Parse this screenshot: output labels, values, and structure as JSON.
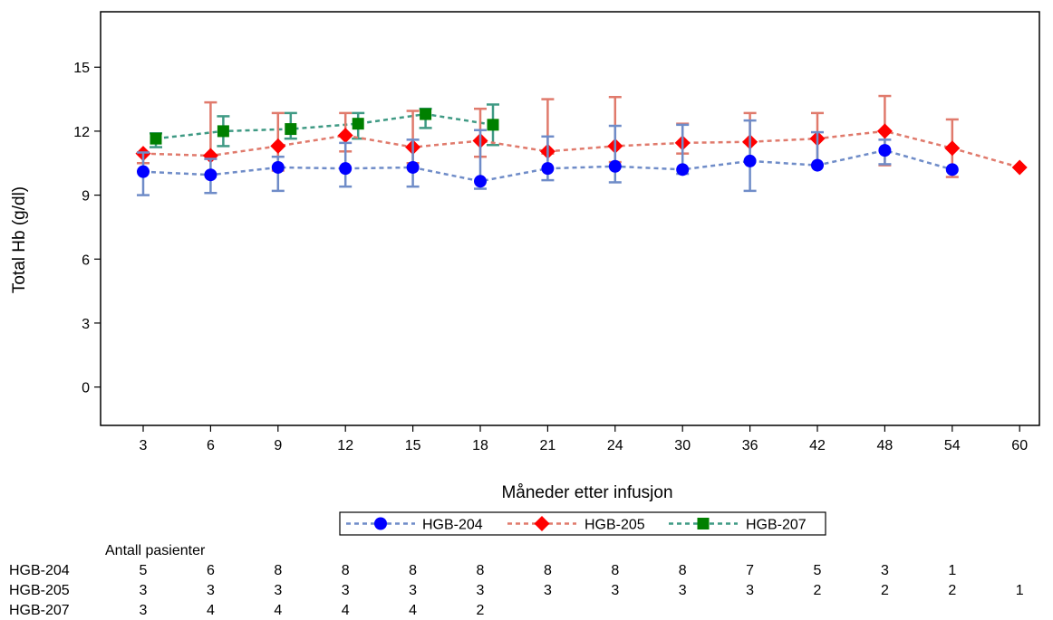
{
  "chart_data": {
    "type": "line",
    "xlabel": "Måneder etter infusjon",
    "ylabel": "Total Hb (g/dl)",
    "categories": [
      "3",
      "6",
      "9",
      "12",
      "15",
      "18",
      "21",
      "24",
      "30",
      "36",
      "42",
      "48",
      "54",
      "60"
    ],
    "y_ticks": [
      0,
      3,
      6,
      9,
      12,
      15
    ],
    "ylim": [
      -1.8,
      17.6
    ],
    "grid": false,
    "legend_position": "bottom",
    "colors": {
      "HGB-204": "#0000ff",
      "HGB-205": "#ff0000",
      "HGB-207": "#008000",
      "HGB-204_err": "#6f8cc8",
      "HGB-205_err": "#e07a6c",
      "HGB-207_err": "#3f9a84"
    },
    "series": [
      {
        "name": "HGB-204",
        "marker": "circle",
        "values": [
          10.1,
          9.95,
          10.3,
          10.25,
          10.3,
          9.65,
          10.25,
          10.35,
          10.2,
          10.6,
          10.4,
          11.1,
          10.2,
          null
        ],
        "lower": [
          9.0,
          9.1,
          9.2,
          9.4,
          9.4,
          9.3,
          9.7,
          9.6,
          10.0,
          9.2,
          10.4,
          10.45,
          10.2,
          null
        ],
        "upper": [
          11.0,
          10.7,
          10.8,
          11.45,
          11.6,
          12.05,
          11.75,
          12.25,
          12.3,
          12.5,
          11.95,
          11.6,
          10.2,
          null
        ]
      },
      {
        "name": "HGB-205",
        "marker": "diamond",
        "values": [
          10.95,
          10.85,
          11.3,
          11.8,
          11.25,
          11.55,
          11.05,
          11.3,
          11.45,
          11.5,
          11.65,
          12.0,
          11.2,
          10.3
        ],
        "lower": [
          10.5,
          10.7,
          10.15,
          11.05,
          10.5,
          10.8,
          10.95,
          10.55,
          10.95,
          11.45,
          10.4,
          10.4,
          9.85,
          10.3
        ],
        "upper": [
          11.0,
          13.35,
          12.85,
          12.85,
          12.95,
          13.05,
          13.5,
          13.6,
          12.35,
          12.85,
          12.85,
          13.65,
          12.55,
          10.3
        ]
      },
      {
        "name": "HGB-207",
        "marker": "square",
        "values": [
          11.65,
          12.0,
          12.1,
          12.35,
          12.8,
          12.3,
          null,
          null,
          null,
          null,
          null,
          null,
          null,
          null
        ],
        "lower": [
          11.25,
          11.3,
          11.65,
          11.65,
          12.15,
          11.35,
          null,
          null,
          null,
          null,
          null,
          null,
          null,
          null
        ],
        "upper": [
          11.9,
          12.7,
          12.85,
          12.85,
          13.05,
          13.25,
          null,
          null,
          null,
          null,
          null,
          null,
          null,
          null
        ]
      }
    ]
  },
  "table": {
    "title": "Antall pasienter",
    "rows": [
      {
        "label": "HGB-204",
        "counts": [
          "5",
          "6",
          "8",
          "8",
          "8",
          "8",
          "8",
          "8",
          "8",
          "7",
          "5",
          "3",
          "1",
          ""
        ]
      },
      {
        "label": "HGB-205",
        "counts": [
          "3",
          "3",
          "3",
          "3",
          "3",
          "3",
          "3",
          "3",
          "3",
          "3",
          "2",
          "2",
          "2",
          "1"
        ]
      },
      {
        "label": "HGB-207",
        "counts": [
          "3",
          "4",
          "4",
          "4",
          "4",
          "2",
          "",
          "",
          "",
          "",
          "",
          "",
          "",
          ""
        ]
      }
    ]
  }
}
